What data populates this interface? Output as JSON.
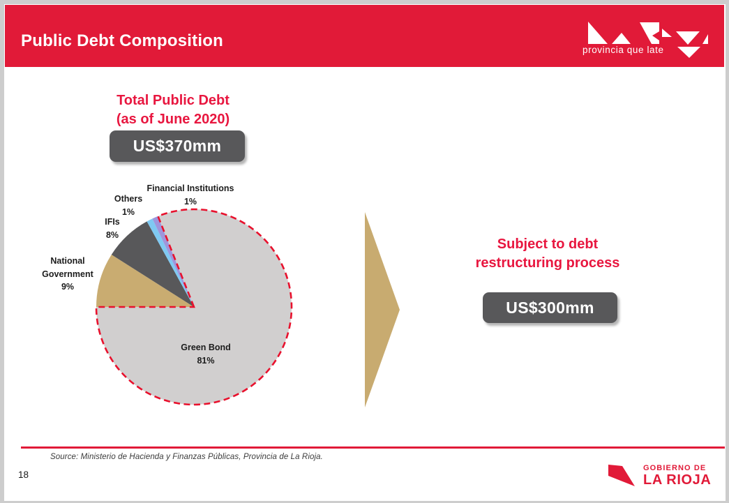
{
  "colors": {
    "brand_red": "#e11a38",
    "dash_red": "#e8112d",
    "badge_gray": "#58585a",
    "arrow_tan": "#c8ab70"
  },
  "header": {
    "title": "Public Debt Composition",
    "logo_tagline": "provincia que late"
  },
  "total_debt": {
    "title_line1": "Total Public Debt",
    "title_line2": "(as of June 2020)",
    "amount": "US$370mm"
  },
  "restructuring": {
    "title_line1": "Subject to debt",
    "title_line2": "restructuring process",
    "amount": "US$300mm"
  },
  "chart_data": {
    "type": "pie",
    "title": "Total Public Debt (as of June 2020)",
    "total_label": "US$370mm",
    "unit": "%",
    "start_angle_cw_from_top": 270,
    "highlight_outline_color": "#e8112d",
    "highlight_note": "Green Bond slice (81% = US$300mm) outlined with red dashed border = subject to debt restructuring process",
    "slices": [
      {
        "label": "National Government",
        "value": 9,
        "value_label": "9%",
        "color": "#c9ac71",
        "highlighted": false
      },
      {
        "label": "IFIs",
        "value": 8,
        "value_label": "8%",
        "color": "#58585a",
        "highlighted": false
      },
      {
        "label": "Others",
        "value": 1,
        "value_label": "1%",
        "color": "#7fc9f2",
        "highlighted": false
      },
      {
        "label": "Financial Institutions",
        "value": 1,
        "value_label": "1%",
        "color": "#9e96dc",
        "highlighted": false
      },
      {
        "label": "Green Bond",
        "value": 81,
        "value_label": "81%",
        "color": "#d1cfcf",
        "highlighted": true
      }
    ]
  },
  "footer": {
    "source": "Source: Ministerio de Hacienda y Finanzas Públicas, Provincia de La Rioja.",
    "page_number": "18",
    "gov_logo_line1": "GOBIERNO DE",
    "gov_logo_line2": "LA RIOJA"
  }
}
